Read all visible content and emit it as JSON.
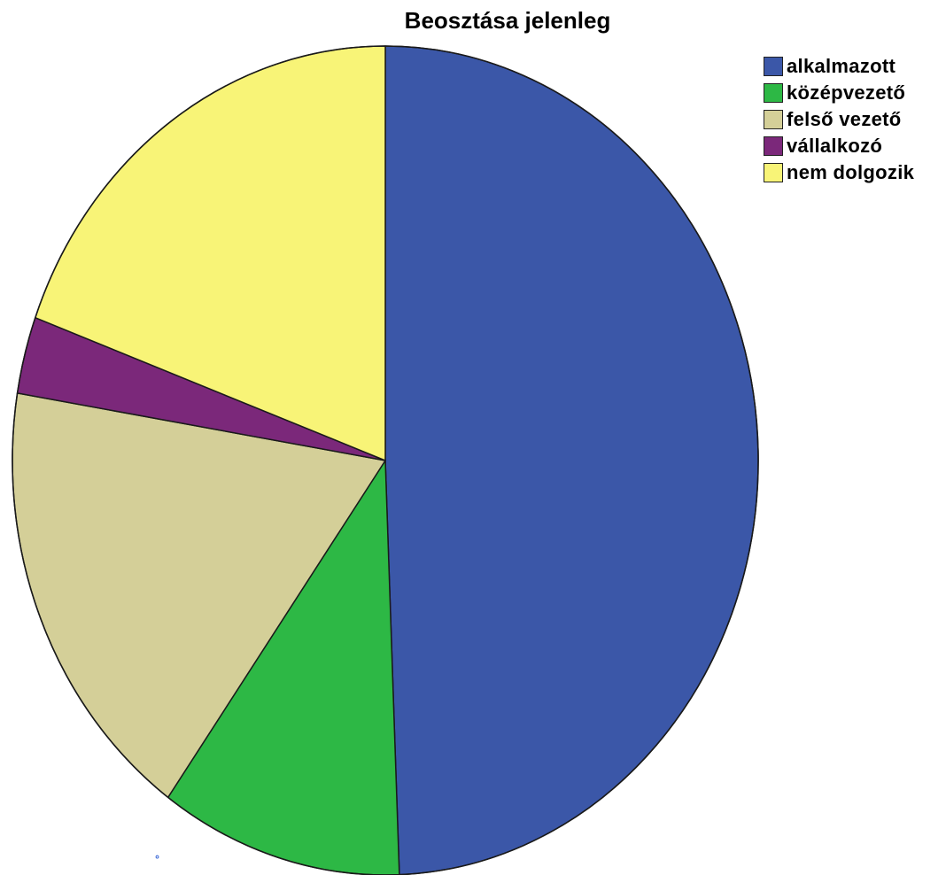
{
  "chart_data": {
    "type": "pie",
    "title": "Beosztása jelenleg",
    "categories": [
      "alkalmazott",
      "középvezető",
      "felső vezető",
      "vállalkozó",
      "nem dolgozik"
    ],
    "values": [
      49.4,
      10.5,
      17.7,
      3.0,
      19.4
    ],
    "colors": [
      "#3b57a8",
      "#2db845",
      "#d4cf98",
      "#7b287a",
      "#f8f477"
    ],
    "legend_position": "top-right",
    "start_angle_deg": 0,
    "direction": "clockwise"
  },
  "decor": {
    "corner_mark_icon": "small-ring-icon",
    "corner_mark_color": "#1a4fd0"
  }
}
